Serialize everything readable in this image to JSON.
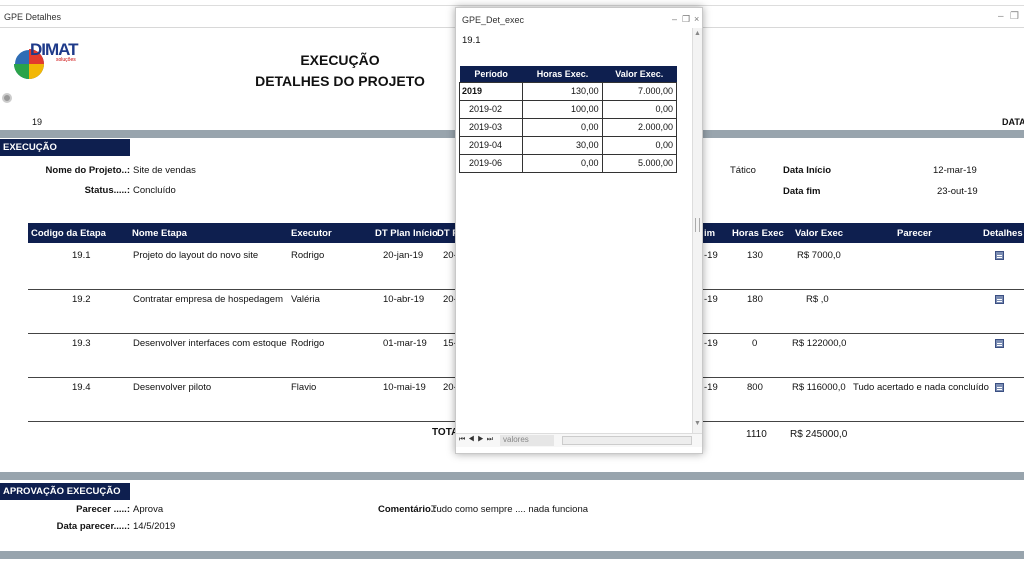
{
  "window": {
    "title": "GPE Detalhes",
    "controls": {
      "minimize": "–",
      "restore": "❐"
    }
  },
  "header": {
    "logo_text": "DIMAT",
    "logo_sub": "soluções",
    "title_line1": "EXECUÇÃO",
    "title_line2": "DETALHES DO PROJETO",
    "project_code": "19",
    "right_cut_label": "DATA"
  },
  "execucao": {
    "section_label": "EXECUÇÃO",
    "nome_label": "Nome do Projeto..:",
    "nome_value": "Site de vendas",
    "status_label": "Status.....:",
    "status_value": "Concluído",
    "tatico": "Tático",
    "data_inicio_label": "Data Início",
    "data_inicio_value": "12-mar-19",
    "data_fim_label": "Data fim",
    "data_fim_value": "23-out-19"
  },
  "table": {
    "headers": {
      "codigo": "Codigo da Etapa",
      "nome": "Nome Etapa",
      "executor": "Executor",
      "dt_plan_inicio": "DT Plan Início",
      "dt_p": "DT P",
      "fim": "im",
      "horas": "Horas Exec",
      "valor": "Valor Exec",
      "parecer": "Parecer",
      "detalhes": "Detalhes"
    },
    "rows": [
      {
        "codigo": "19.1",
        "nome": "Projeto do layout do novo site",
        "executor": "Rodrigo",
        "dt_plan_inicio": "20-jan-19",
        "dt_p": "20-",
        "fim": "-19",
        "horas": "130",
        "valor": "R$ 7000,0",
        "parecer": ""
      },
      {
        "codigo": "19.2",
        "nome": "Contratar empresa de hospedagem",
        "executor": "Valéria",
        "dt_plan_inicio": "10-abr-19",
        "dt_p": "20-",
        "fim": "-19",
        "horas": "180",
        "valor": "R$ ,0",
        "parecer": ""
      },
      {
        "codigo": "19.3",
        "nome": "Desenvolver interfaces com estoque",
        "executor": "Rodrigo",
        "dt_plan_inicio": "01-mar-19",
        "dt_p": "15-",
        "fim": "-19",
        "horas": "0",
        "valor": "R$ 122000,0",
        "parecer": ""
      },
      {
        "codigo": "19.4",
        "nome": "Desenvolver piloto",
        "executor": "Flavio",
        "dt_plan_inicio": "10-mai-19",
        "dt_p": "20-",
        "fim": "-19",
        "horas": "800",
        "valor": "R$ 116000,0",
        "parecer": "Tudo acertado e nada concluído"
      }
    ],
    "total_label": "TOTA",
    "total_horas": "1110",
    "total_valor": "R$ 245000,0"
  },
  "aprovacao": {
    "section_label": "APROVAÇÃO EXECUÇÃO",
    "parecer_label": "Parecer .....:",
    "parecer_value": "Aprova",
    "data_label": "Data parecer.....:",
    "data_value": "14/5/2019",
    "comentario_label": "Comentário.:",
    "comentario_value": "Tudo como sempre .... nada funciona"
  },
  "popup": {
    "title": "GPE_Det_exec",
    "controls": {
      "minimize": "–",
      "restore": "❐",
      "close": "×"
    },
    "value": "19.1",
    "headers": {
      "periodo": "Período",
      "horas": "Horas Exec.",
      "valor": "Valor Exec."
    },
    "rows": [
      {
        "periodo": "2019",
        "horas": "130,00",
        "valor": "7.000,00",
        "top": true
      },
      {
        "periodo": "2019-02",
        "horas": "100,00",
        "valor": "0,00"
      },
      {
        "periodo": "2019-03",
        "horas": "0,00",
        "valor": "2.000,00"
      },
      {
        "periodo": "2019-04",
        "horas": "30,00",
        "valor": "0,00"
      },
      {
        "periodo": "2019-06",
        "horas": "0,00",
        "valor": "5.000,00"
      }
    ],
    "sheet_tab": "valores"
  },
  "colors": {
    "navy": "#0e1f4f",
    "grey_bar": "#98a4ad",
    "icon": "#7b8db3"
  }
}
